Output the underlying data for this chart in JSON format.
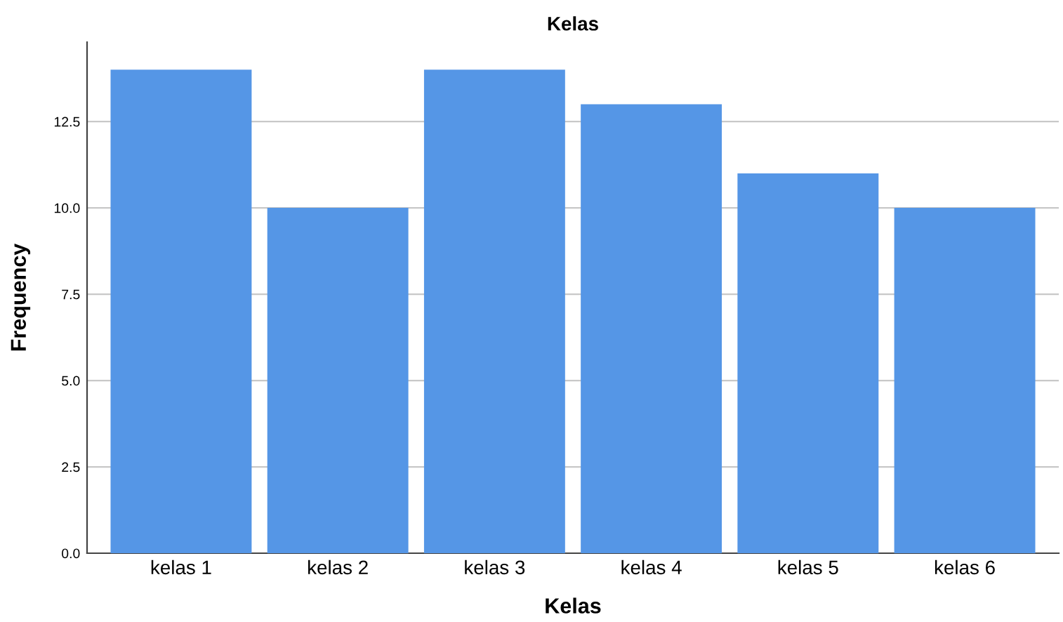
{
  "chart_data": {
    "type": "bar",
    "title": "Kelas",
    "xlabel": "Kelas",
    "ylabel": "Frequency",
    "categories": [
      "kelas 1",
      "kelas 2",
      "kelas 3",
      "kelas 4",
      "kelas 5",
      "kelas 6"
    ],
    "values": [
      14,
      10,
      14,
      13,
      11,
      10
    ],
    "color": "#5596e6",
    "ylim": [
      0,
      14.8
    ],
    "yticks": [
      {
        "value": 0,
        "label": "0.0"
      },
      {
        "value": 2.5,
        "label": "2.5"
      },
      {
        "value": 5,
        "label": "5.0"
      },
      {
        "value": 7.5,
        "label": "7.5"
      },
      {
        "value": 10,
        "label": "10.0"
      },
      {
        "value": 12.5,
        "label": "12.5"
      }
    ],
    "grid": "y"
  }
}
